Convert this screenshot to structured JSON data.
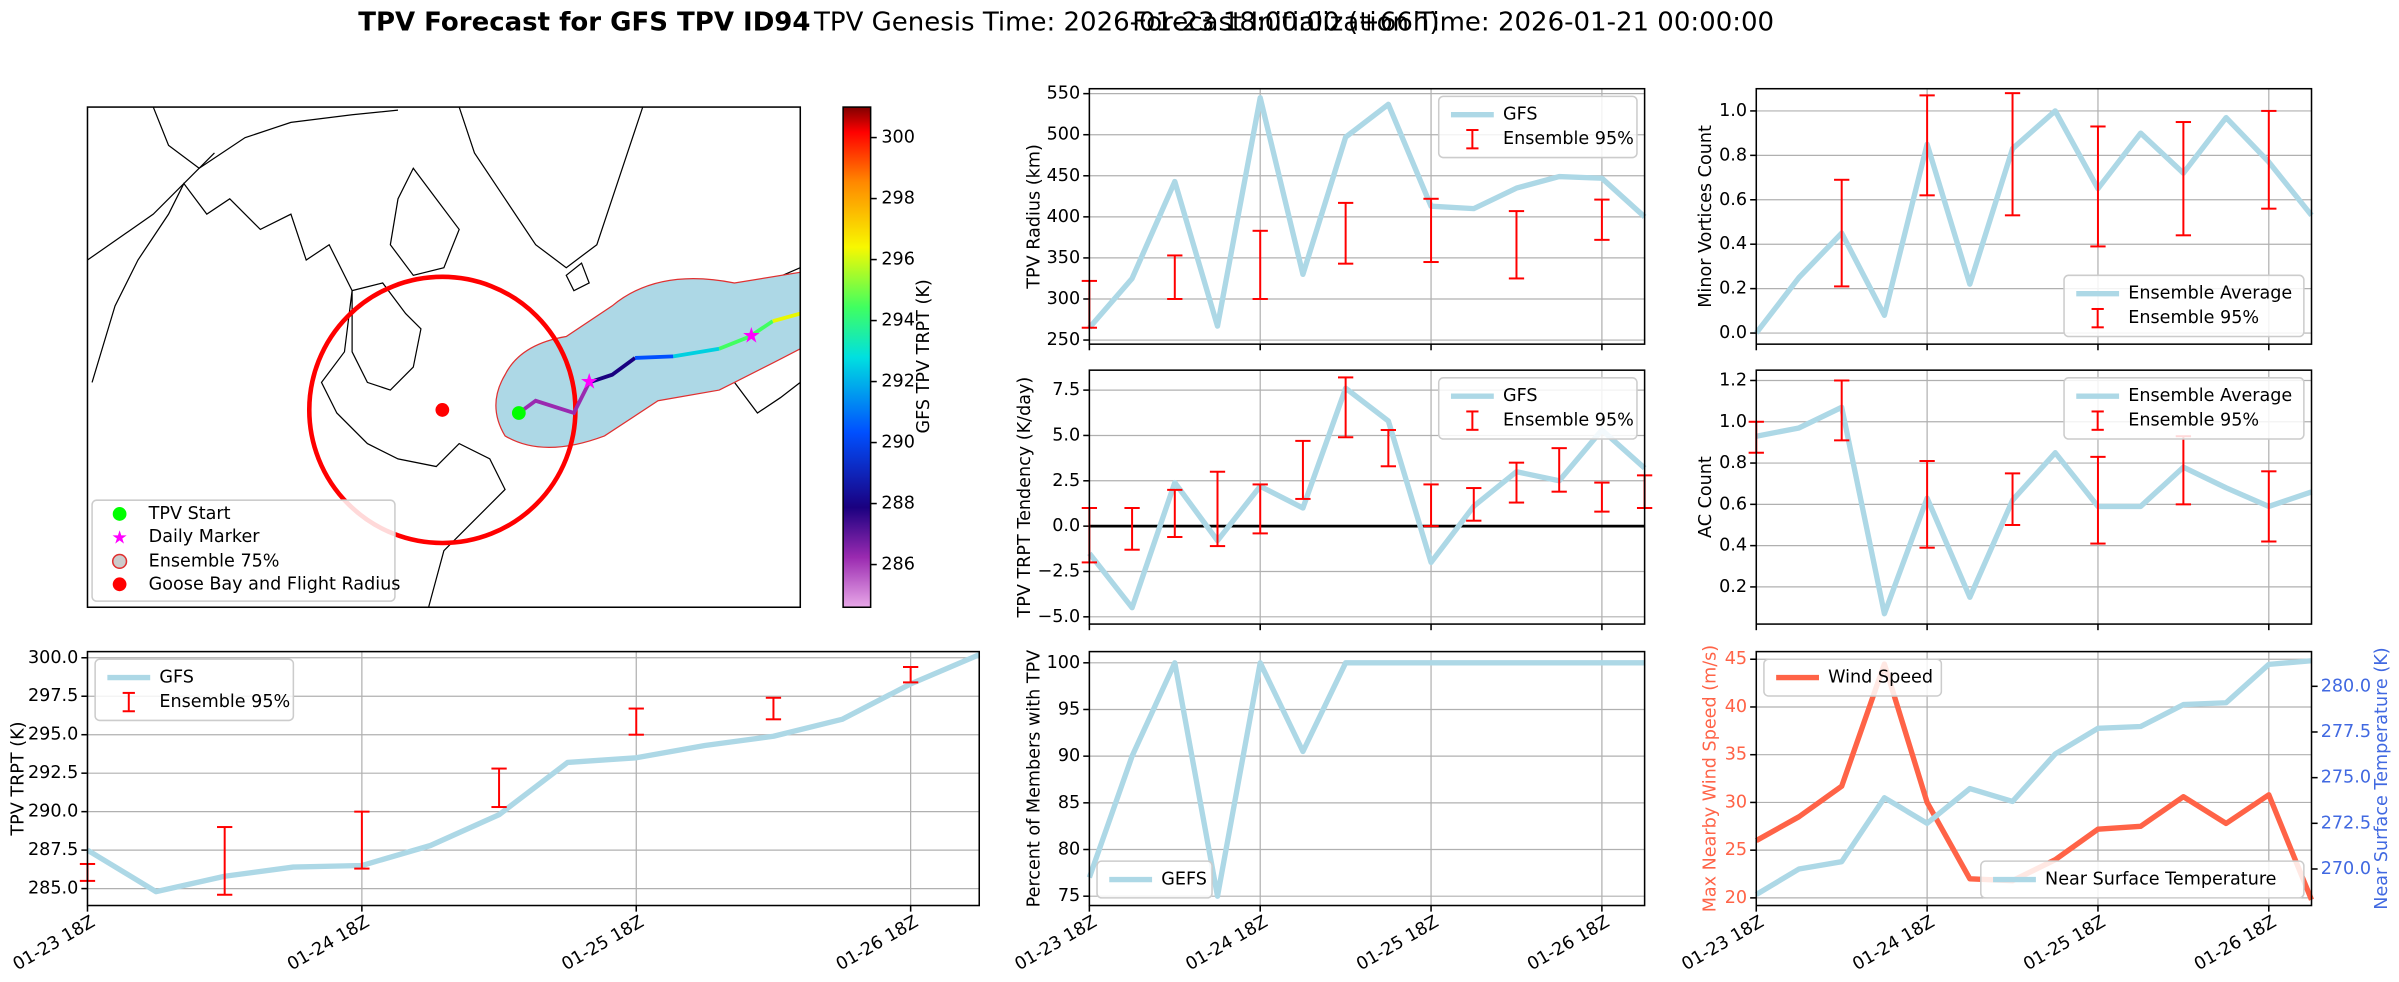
{
  "suptitle": {
    "bold": "TPV Forecast for GFS TPV ID94",
    "genesis": "TPV Genesis Time: 2026-01-23 18:00:00 (+66h)",
    "init": "Forecast Initialization Time: 2026-01-21 00:00:00"
  },
  "chart_data": [
    {
      "type": "map",
      "colorbar_label": "GFS TPV TRPT (K)",
      "clim": [
        284.6,
        301
      ],
      "cticks": [
        286,
        288,
        290,
        292,
        294,
        296,
        298,
        300
      ],
      "legend_entries": [
        "TPV Start",
        "Daily Marker",
        "Ensemble 75%",
        "Goose Bay and Flight Radius"
      ]
    },
    {
      "type": "line",
      "ylabel": "TPV TRPT (K)",
      "categories": [
        "01-23 18Z",
        null,
        null,
        null,
        "01-24 18Z",
        null,
        null,
        null,
        "01-25 18Z",
        null,
        null,
        null,
        "01-26 18Z",
        null
      ],
      "ylim": [
        283.9,
        300.4
      ],
      "yticks": [
        {
          "value": 285,
          "label": "285.0"
        },
        287.5,
        {
          "value": 290,
          "label": "290.0"
        },
        292.5,
        {
          "value": 295,
          "label": "295.0"
        },
        297.5,
        {
          "value": 300,
          "label": "300.0"
        }
      ],
      "legend": "upper left",
      "grid": true,
      "series": [
        {
          "name": "GFS",
          "color": "#add8e6",
          "values": [
            287.5,
            284.8,
            285.8,
            286.4,
            286.5,
            287.8,
            289.8,
            293.2,
            293.5,
            294.3,
            294.9,
            296.0,
            298.3,
            300.2
          ]
        },
        {
          "name": "Ensemble 95%",
          "type": "errorbar",
          "color": "#ff0000",
          "low": [
            285.5,
            null,
            284.6,
            null,
            286.3,
            null,
            290.3,
            null,
            295.0,
            null,
            296.0,
            null,
            298.4,
            null
          ],
          "high": [
            286.6,
            null,
            289.0,
            null,
            290.0,
            null,
            292.8,
            null,
            296.7,
            null,
            297.4,
            null,
            299.4,
            null
          ]
        }
      ]
    },
    {
      "type": "line",
      "ylabel": "TPV Radius (km)",
      "categories": [
        null,
        null,
        null,
        null,
        null,
        null,
        null,
        null,
        null,
        null,
        null,
        null,
        null,
        null
      ],
      "ylim": [
        245,
        556
      ],
      "yticks": [
        250,
        300,
        350,
        400,
        450,
        500,
        550
      ],
      "legend": "upper right",
      "grid": true,
      "series": [
        {
          "name": "GFS",
          "color": "#add8e6",
          "values": [
            265,
            325,
            443,
            267,
            545,
            330,
            497,
            537,
            413,
            410,
            435,
            449,
            447,
            400
          ]
        },
        {
          "name": "Ensemble 95%",
          "type": "errorbar",
          "color": "#ff0000",
          "low": [
            265,
            null,
            300,
            null,
            300,
            null,
            343,
            null,
            345,
            null,
            325,
            null,
            372,
            null
          ],
          "high": [
            322,
            null,
            353,
            null,
            383,
            null,
            417,
            null,
            422,
            null,
            407,
            null,
            421,
            null
          ]
        }
      ]
    },
    {
      "type": "line",
      "ylabel": "TPV TRPT Tendency (K/day)",
      "categories": [
        null,
        null,
        null,
        null,
        null,
        null,
        null,
        null,
        null,
        null,
        null,
        null,
        null,
        null
      ],
      "ylim": [
        -5.4,
        8.6
      ],
      "yticks": [
        {
          "value": -5,
          "label": "−5.0"
        },
        {
          "value": -2.5,
          "label": "−2.5"
        },
        {
          "value": 0,
          "label": "0.0"
        },
        2.5,
        {
          "value": 5,
          "label": "5.0"
        },
        7.5
      ],
      "hline": 0,
      "legend": "upper right",
      "grid": true,
      "series": [
        {
          "name": "GFS",
          "color": "#add8e6",
          "values": [
            -1.5,
            -4.5,
            2.4,
            -0.8,
            2.2,
            1.0,
            7.6,
            5.8,
            -2.0,
            1.1,
            3.0,
            2.5,
            5.3,
            3.2
          ]
        },
        {
          "name": "Ensemble 95%",
          "type": "errorbar",
          "color": "#ff0000",
          "low": [
            -2.0,
            -1.3,
            -0.6,
            -1.1,
            -0.4,
            1.5,
            4.9,
            3.3,
            0.0,
            0.3,
            1.3,
            1.9,
            0.8,
            1.0
          ],
          "high": [
            1.0,
            1.0,
            2.0,
            3.0,
            2.3,
            4.7,
            8.2,
            5.3,
            2.3,
            2.1,
            3.5,
            4.3,
            2.4,
            2.8
          ]
        }
      ]
    },
    {
      "type": "line",
      "ylabel": "Percent of Members with TPV",
      "categories": [
        "01-23 18Z",
        null,
        null,
        null,
        "01-24 18Z",
        null,
        null,
        null,
        "01-25 18Z",
        null,
        null,
        null,
        "01-26 18Z",
        null
      ],
      "ylim": [
        74,
        101.2
      ],
      "yticks": [
        75,
        80,
        85,
        90,
        95,
        100
      ],
      "legend": "lower left",
      "grid": true,
      "series": [
        {
          "name": "GEFS",
          "color": "#add8e6",
          "values": [
            77,
            90,
            100,
            75,
            100,
            90.5,
            100,
            100,
            100,
            100,
            100,
            100,
            100,
            100
          ]
        }
      ]
    },
    {
      "type": "line",
      "ylabel": "Minor Vortices Count",
      "categories": [
        null,
        null,
        null,
        null,
        null,
        null,
        null,
        null,
        null,
        null,
        null,
        null,
        null,
        null
      ],
      "ylim": [
        -0.05,
        1.1
      ],
      "yticks": [
        {
          "value": 0,
          "label": "0.0"
        },
        0.2,
        0.4,
        0.6,
        0.8,
        {
          "value": 1,
          "label": "1.0"
        }
      ],
      "legend": "lower right",
      "grid": true,
      "series": [
        {
          "name": "Ensemble Average",
          "color": "#add8e6",
          "values": [
            0.0,
            0.25,
            0.45,
            0.08,
            0.85,
            0.22,
            0.83,
            1.0,
            0.65,
            0.9,
            0.72,
            0.97,
            0.77,
            0.53
          ]
        },
        {
          "name": "Ensemble 95%",
          "type": "errorbar",
          "color": "#ff0000",
          "low": [
            null,
            null,
            0.21,
            null,
            0.62,
            null,
            0.53,
            null,
            0.39,
            null,
            0.44,
            null,
            0.56,
            null
          ],
          "high": [
            null,
            null,
            0.69,
            null,
            1.07,
            null,
            1.08,
            null,
            0.93,
            null,
            0.95,
            null,
            1.0,
            null
          ]
        }
      ]
    },
    {
      "type": "line",
      "ylabel": "AC Count",
      "categories": [
        null,
        null,
        null,
        null,
        null,
        null,
        null,
        null,
        null,
        null,
        null,
        null,
        null,
        null
      ],
      "ylim": [
        0.02,
        1.25
      ],
      "yticks": [
        0.2,
        0.4,
        0.6,
        0.8,
        {
          "value": 1,
          "label": "1.0"
        },
        1.2
      ],
      "legend": "upper right",
      "grid": true,
      "series": [
        {
          "name": "Ensemble Average",
          "color": "#add8e6",
          "values": [
            0.93,
            0.97,
            1.07,
            0.07,
            0.63,
            0.15,
            0.62,
            0.85,
            0.59,
            0.59,
            0.78,
            0.68,
            0.59,
            0.66
          ]
        },
        {
          "name": "Ensemble 95%",
          "type": "errorbar",
          "color": "#ff0000",
          "low": [
            0.85,
            null,
            0.91,
            null,
            0.39,
            null,
            0.5,
            null,
            0.41,
            null,
            0.6,
            null,
            0.42,
            null
          ],
          "high": [
            1.0,
            null,
            1.2,
            null,
            0.81,
            null,
            0.75,
            null,
            0.83,
            null,
            0.93,
            null,
            0.76,
            null
          ]
        }
      ]
    },
    {
      "type": "line",
      "ylabel": "Max Nearby Wind Speed (m/s)",
      "ylabel_color": "#ff6347",
      "y2label": "Near Surface Temperature (K)",
      "y2label_color": "#4169e1",
      "categories": [
        "01-23 18Z",
        null,
        null,
        null,
        "01-24 18Z",
        null,
        null,
        null,
        "01-25 18Z",
        null,
        null,
        null,
        "01-26 18Z",
        null
      ],
      "ylim": [
        19.2,
        45.8
      ],
      "yticks": [
        20,
        25,
        30,
        35,
        40,
        45
      ],
      "y2lim": [
        268.0,
        281.9
      ],
      "y2ticks": [
        {
          "value": 270,
          "label": "270.0"
        },
        272.5,
        {
          "value": 275,
          "label": "275.0"
        },
        277.5,
        {
          "value": 280,
          "label": "280.0"
        }
      ],
      "grid": true,
      "series": [
        {
          "name": "Wind Speed",
          "color": "#ff6347",
          "legend": "upper left",
          "values": [
            26,
            28.5,
            31.7,
            44.5,
            30,
            22,
            21.8,
            24,
            27.2,
            27.5,
            30.6,
            27.8,
            30.8,
            19.8
          ]
        },
        {
          "name": "Near Surface Temperature",
          "color": "#add8e6",
          "axis": "y2",
          "legend": "lower right",
          "values": [
            268.6,
            270.0,
            270.4,
            273.9,
            272.5,
            274.4,
            273.7,
            276.3,
            277.7,
            277.8,
            279.0,
            279.1,
            281.2,
            281.4
          ]
        }
      ]
    }
  ]
}
